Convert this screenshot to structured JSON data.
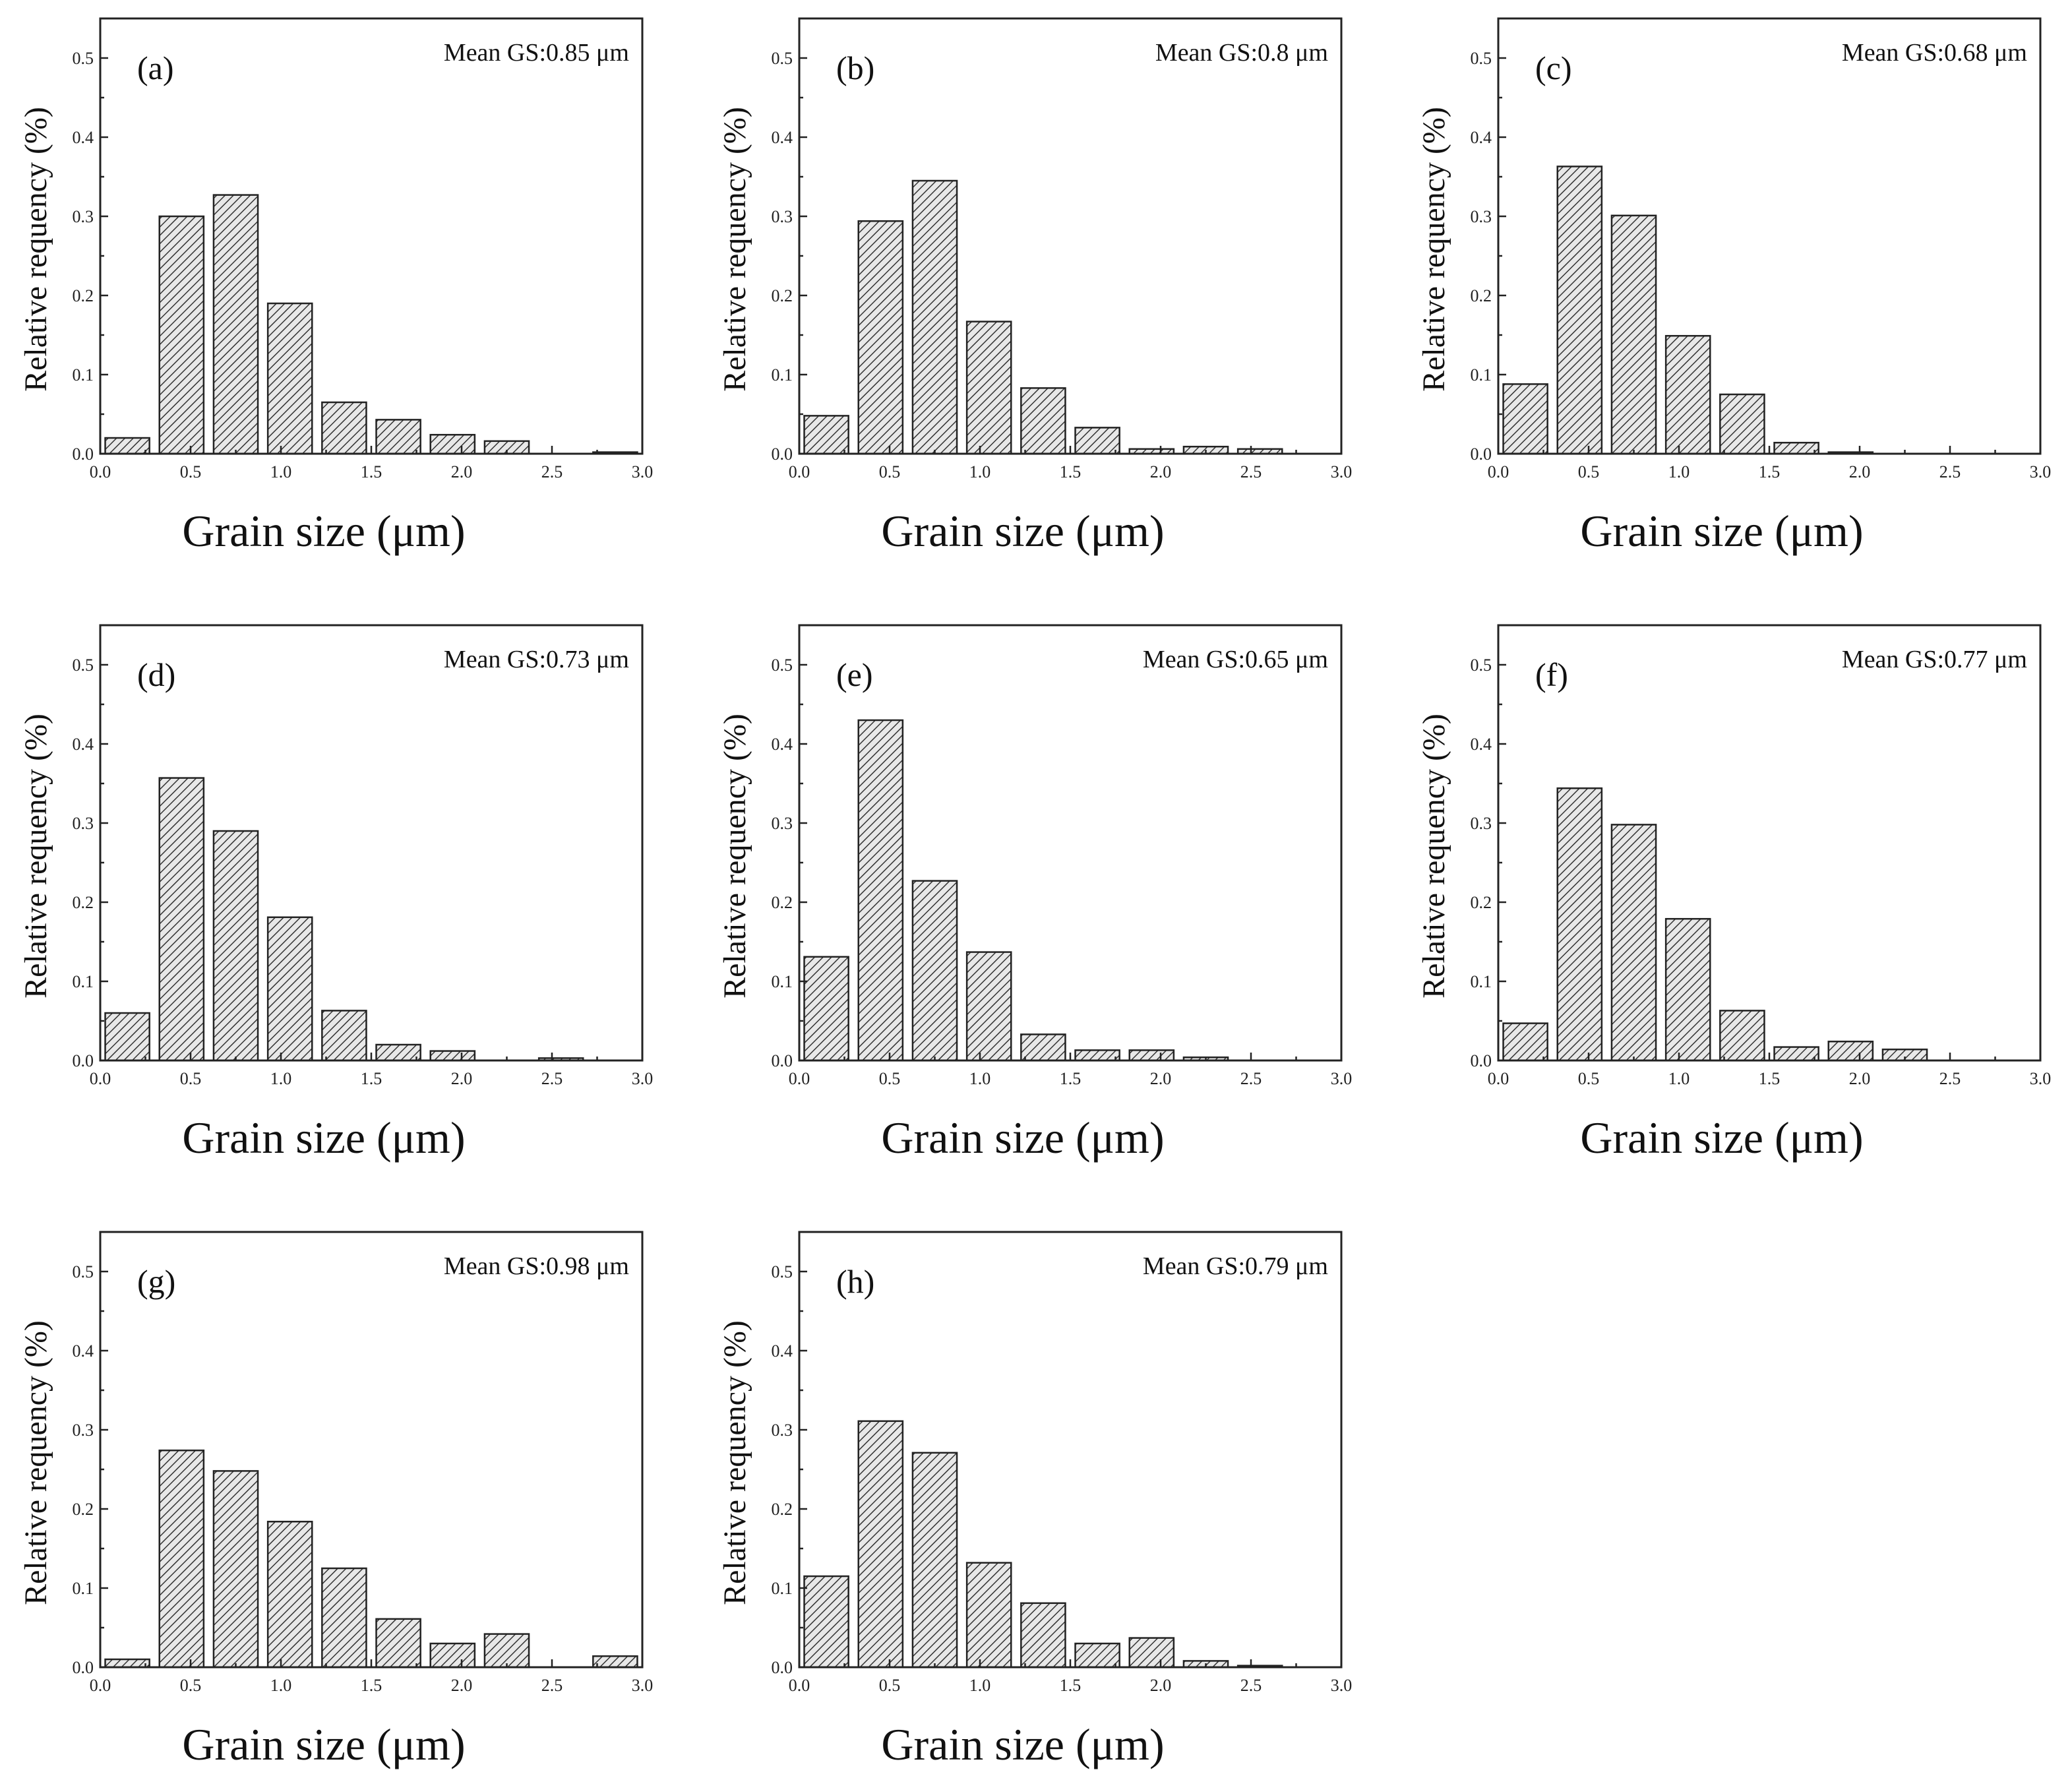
{
  "chart_data": [
    {
      "type": "bar",
      "panel_label": "(a)",
      "annotation": "Mean GS:0.85 μm",
      "xlabel": "Grain size (μm)",
      "ylabel": "Relative requency (%)",
      "xlim": [
        0,
        3
      ],
      "ylim": [
        0,
        0.55
      ],
      "xticks": [
        "0.0",
        "0.5",
        "1.0",
        "1.5",
        "2.0",
        "2.5",
        "3.0"
      ],
      "yticks": [
        "0.0",
        "0.1",
        "0.2",
        "0.3",
        "0.4",
        "0.5"
      ],
      "bin_centers": [
        0.15,
        0.45,
        0.75,
        1.05,
        1.35,
        1.65,
        1.95,
        2.25,
        2.55,
        2.85
      ],
      "values": [
        0.02,
        0.3,
        0.327,
        0.19,
        0.065,
        0.043,
        0.024,
        0.016,
        0.0,
        0.002
      ]
    },
    {
      "type": "bar",
      "panel_label": "(b)",
      "annotation": "Mean GS:0.8 μm",
      "xlabel": "Grain size (μm)",
      "ylabel": "Relative requency (%)",
      "xlim": [
        0,
        3
      ],
      "ylim": [
        0,
        0.55
      ],
      "xticks": [
        "0.0",
        "0.5",
        "1.0",
        "1.5",
        "2.0",
        "2.5",
        "3.0"
      ],
      "yticks": [
        "0.0",
        "0.1",
        "0.2",
        "0.3",
        "0.4",
        "0.5"
      ],
      "bin_centers": [
        0.15,
        0.45,
        0.75,
        1.05,
        1.35,
        1.65,
        1.95,
        2.25,
        2.55,
        2.85
      ],
      "values": [
        0.048,
        0.294,
        0.345,
        0.167,
        0.083,
        0.033,
        0.006,
        0.009,
        0.006,
        0.0
      ]
    },
    {
      "type": "bar",
      "panel_label": "(c)",
      "annotation": "Mean GS:0.68 μm",
      "xlabel": "Grain size (μm)",
      "ylabel": "Relative requency (%)",
      "xlim": [
        0,
        3
      ],
      "ylim": [
        0,
        0.55
      ],
      "xticks": [
        "0.0",
        "0.5",
        "1.0",
        "1.5",
        "2.0",
        "2.5",
        "3.0"
      ],
      "yticks": [
        "0.0",
        "0.1",
        "0.2",
        "0.3",
        "0.4",
        "0.5"
      ],
      "bin_centers": [
        0.15,
        0.45,
        0.75,
        1.05,
        1.35,
        1.65,
        1.95,
        2.25,
        2.55,
        2.85
      ],
      "values": [
        0.088,
        0.363,
        0.301,
        0.149,
        0.075,
        0.014,
        0.002,
        0.0,
        0.0,
        0.0
      ]
    },
    {
      "type": "bar",
      "panel_label": "(d)",
      "annotation": "Mean GS:0.73 μm",
      "xlabel": "Grain size (μm)",
      "ylabel": "Relative requency (%)",
      "xlim": [
        0,
        3
      ],
      "ylim": [
        0,
        0.55
      ],
      "xticks": [
        "0.0",
        "0.5",
        "1.0",
        "1.5",
        "2.0",
        "2.5",
        "3.0"
      ],
      "yticks": [
        "0.0",
        "0.1",
        "0.2",
        "0.3",
        "0.4",
        "0.5"
      ],
      "bin_centers": [
        0.15,
        0.45,
        0.75,
        1.05,
        1.35,
        1.65,
        1.95,
        2.25,
        2.55,
        2.85
      ],
      "values": [
        0.06,
        0.357,
        0.29,
        0.181,
        0.063,
        0.02,
        0.012,
        0.0,
        0.003,
        0.0
      ]
    },
    {
      "type": "bar",
      "panel_label": "(e)",
      "annotation": "Mean GS:0.65 μm",
      "xlabel": "Grain size (μm)",
      "ylabel": "Relative requency (%)",
      "xlim": [
        0,
        3
      ],
      "ylim": [
        0,
        0.55
      ],
      "xticks": [
        "0.0",
        "0.5",
        "1.0",
        "1.5",
        "2.0",
        "2.5",
        "3.0"
      ],
      "yticks": [
        "0.0",
        "0.1",
        "0.2",
        "0.3",
        "0.4",
        "0.5"
      ],
      "bin_centers": [
        0.15,
        0.45,
        0.75,
        1.05,
        1.35,
        1.65,
        1.95,
        2.25,
        2.55,
        2.85
      ],
      "values": [
        0.131,
        0.43,
        0.227,
        0.137,
        0.033,
        0.013,
        0.013,
        0.004,
        0.0,
        0.0
      ]
    },
    {
      "type": "bar",
      "panel_label": "(f)",
      "annotation": "Mean GS:0.77 μm",
      "xlabel": "Grain size (μm)",
      "ylabel": "Relative requency (%)",
      "xlim": [
        0,
        3
      ],
      "ylim": [
        0,
        0.55
      ],
      "xticks": [
        "0.0",
        "0.5",
        "1.0",
        "1.5",
        "2.0",
        "2.5",
        "3.0"
      ],
      "yticks": [
        "0.0",
        "0.1",
        "0.2",
        "0.3",
        "0.4",
        "0.5"
      ],
      "bin_centers": [
        0.15,
        0.45,
        0.75,
        1.05,
        1.35,
        1.65,
        1.95,
        2.25,
        2.55,
        2.85
      ],
      "values": [
        0.047,
        0.344,
        0.298,
        0.179,
        0.063,
        0.017,
        0.024,
        0.014,
        0.0,
        0.0
      ]
    },
    {
      "type": "bar",
      "panel_label": "(g)",
      "annotation": "Mean GS:0.98 μm",
      "xlabel": "Grain size (μm)",
      "ylabel": "Relative requency (%)",
      "xlim": [
        0,
        3
      ],
      "ylim": [
        0,
        0.55
      ],
      "xticks": [
        "0.0",
        "0.5",
        "1.0",
        "1.5",
        "2.0",
        "2.5",
        "3.0"
      ],
      "yticks": [
        "0.0",
        "0.1",
        "0.2",
        "0.3",
        "0.4",
        "0.5"
      ],
      "bin_centers": [
        0.15,
        0.45,
        0.75,
        1.05,
        1.35,
        1.65,
        1.95,
        2.25,
        2.55,
        2.85
      ],
      "values": [
        0.01,
        0.274,
        0.248,
        0.184,
        0.125,
        0.061,
        0.03,
        0.042,
        0.0,
        0.014
      ]
    },
    {
      "type": "bar",
      "panel_label": "(h)",
      "annotation": "Mean GS:0.79 μm",
      "xlabel": "Grain size (μm)",
      "ylabel": "Relative requency (%)",
      "xlim": [
        0,
        3
      ],
      "ylim": [
        0,
        0.55
      ],
      "xticks": [
        "0.0",
        "0.5",
        "1.0",
        "1.5",
        "2.0",
        "2.5",
        "3.0"
      ],
      "yticks": [
        "0.0",
        "0.1",
        "0.2",
        "0.3",
        "0.4",
        "0.5"
      ],
      "bin_centers": [
        0.15,
        0.45,
        0.75,
        1.05,
        1.35,
        1.65,
        1.95,
        2.25,
        2.55,
        2.85
      ],
      "values": [
        0.115,
        0.311,
        0.271,
        0.132,
        0.081,
        0.03,
        0.037,
        0.008,
        0.002,
        0.0
      ]
    }
  ],
  "style": {
    "bar_fill": "#e8e8e8",
    "hatch_color": "#333333",
    "axis_color": "#222222"
  }
}
